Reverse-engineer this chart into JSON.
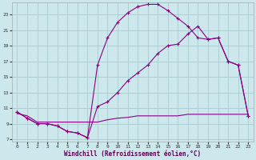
{
  "xlabel": "Windchill (Refroidissement éolien,°C)",
  "bg_color": "#cce8ec",
  "grid_color": "#aacccc",
  "line_color": "#880080",
  "xlim": [
    0,
    23
  ],
  "ylim": [
    7,
    24
  ],
  "xticks": [
    0,
    1,
    2,
    3,
    4,
    5,
    6,
    7,
    8,
    9,
    10,
    11,
    12,
    13,
    14,
    15,
    16,
    17,
    18,
    19,
    20,
    21,
    22,
    23
  ],
  "yticks": [
    7,
    9,
    11,
    13,
    15,
    17,
    19,
    21,
    23
  ],
  "curve_high_x": [
    0,
    1,
    2,
    3,
    4,
    5,
    6,
    7,
    8,
    9,
    10,
    11,
    12,
    13,
    14,
    15,
    16,
    17,
    18,
    19,
    20,
    21,
    22,
    23
  ],
  "curve_high_y": [
    10.5,
    9.7,
    9.0,
    9.0,
    8.7,
    8.0,
    7.8,
    7.2,
    16.5,
    20.0,
    22.0,
    23.2,
    24.0,
    24.3,
    24.3,
    23.5,
    22.5,
    21.5,
    20.0,
    19.8,
    20.0,
    17.0,
    16.5,
    10.0
  ],
  "curve_mid_x": [
    0,
    1,
    2,
    3,
    4,
    5,
    6,
    7,
    8,
    9,
    10,
    11,
    12,
    13,
    14,
    15,
    16,
    17,
    18,
    19,
    20,
    21,
    22,
    23
  ],
  "curve_mid_y": [
    10.5,
    9.7,
    9.0,
    9.0,
    8.7,
    8.0,
    7.8,
    7.2,
    11.2,
    11.8,
    13.0,
    14.5,
    15.5,
    16.5,
    18.0,
    19.0,
    19.2,
    20.5,
    21.5,
    19.8,
    20.0,
    17.0,
    16.5,
    10.0
  ],
  "curve_flat_x": [
    0,
    1,
    2,
    3,
    4,
    5,
    6,
    7,
    8,
    9,
    10,
    11,
    12,
    13,
    14,
    15,
    16,
    17,
    18,
    19,
    20,
    21,
    22,
    23
  ],
  "curve_flat_y": [
    10.3,
    10.0,
    9.2,
    9.2,
    9.2,
    9.2,
    9.2,
    9.2,
    9.2,
    9.5,
    9.7,
    9.8,
    10.0,
    10.0,
    10.0,
    10.0,
    10.0,
    10.2,
    10.2,
    10.2,
    10.2,
    10.2,
    10.2,
    10.2
  ]
}
